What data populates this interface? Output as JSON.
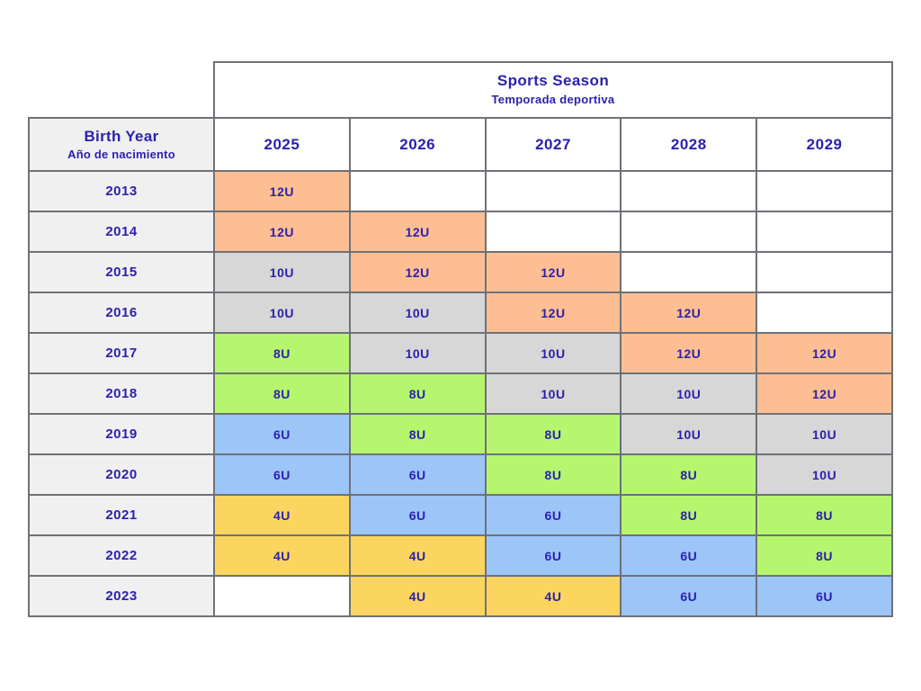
{
  "header": {
    "title": "Sports Season",
    "subtitle": "Temporada deportiva",
    "birth_year_title": "Birth Year",
    "birth_year_subtitle": "Año de nacimiento"
  },
  "chart_data": {
    "type": "table",
    "title": "Sports Season",
    "subtitle": "Temporada deportiva",
    "row_axis_label": "Birth Year / Año de nacimiento",
    "columns": [
      "2025",
      "2026",
      "2027",
      "2028",
      "2029"
    ],
    "rows": [
      {
        "birth_year": "2013",
        "cells": [
          "12U",
          "",
          "",
          "",
          ""
        ]
      },
      {
        "birth_year": "2014",
        "cells": [
          "12U",
          "12U",
          "",
          "",
          ""
        ]
      },
      {
        "birth_year": "2015",
        "cells": [
          "10U",
          "12U",
          "12U",
          "",
          ""
        ]
      },
      {
        "birth_year": "2016",
        "cells": [
          "10U",
          "10U",
          "12U",
          "12U",
          ""
        ]
      },
      {
        "birth_year": "2017",
        "cells": [
          "8U",
          "10U",
          "10U",
          "12U",
          "12U"
        ]
      },
      {
        "birth_year": "2018",
        "cells": [
          "8U",
          "8U",
          "10U",
          "10U",
          "12U"
        ]
      },
      {
        "birth_year": "2019",
        "cells": [
          "6U",
          "8U",
          "8U",
          "10U",
          "10U"
        ]
      },
      {
        "birth_year": "2020",
        "cells": [
          "6U",
          "6U",
          "8U",
          "8U",
          "10U"
        ]
      },
      {
        "birth_year": "2021",
        "cells": [
          "4U",
          "6U",
          "6U",
          "8U",
          "8U"
        ]
      },
      {
        "birth_year": "2022",
        "cells": [
          "4U",
          "4U",
          "6U",
          "6U",
          "8U"
        ]
      },
      {
        "birth_year": "2023",
        "cells": [
          "",
          "4U",
          "4U",
          "6U",
          "6U"
        ]
      }
    ]
  },
  "division_colors": {
    "12U": "#FDBE93",
    "10U": "#D7D7D7",
    "8U": "#B5F66E",
    "6U": "#9CC5F8",
    "4U": "#FBD55F",
    "": "#FFFFFF"
  },
  "theme": {
    "text_color": "#2B1FAD",
    "border_color": "#6E7176",
    "row_label_background": "#F0F0F0",
    "page_background": "#FFFFFF"
  }
}
